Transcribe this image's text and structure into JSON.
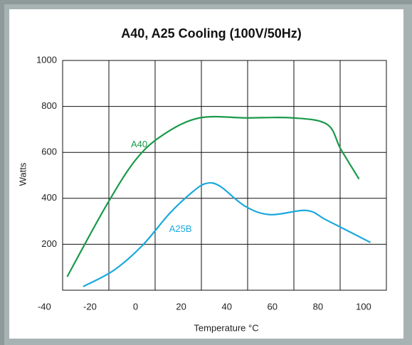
{
  "chart_data": {
    "type": "line",
    "title": "A40, A25 Cooling (100V/50Hz)",
    "x_label": "Temperature °C",
    "y_label": "Watts",
    "xlim": [
      -32,
      110
    ],
    "xticks": [
      -40,
      -20,
      0,
      20,
      40,
      60,
      80,
      100
    ],
    "ylim": [
      0,
      1000
    ],
    "yticks": [
      200,
      400,
      600,
      800,
      1000
    ],
    "grid": true,
    "series": [
      {
        "name": "A40",
        "color": "#1a9a4a",
        "x": [
          -30,
          -13,
          0,
          12,
          28,
          49,
          69,
          84,
          90,
          98
        ],
        "values": [
          59,
          366,
          567,
          676,
          750,
          750,
          750,
          722,
          614,
          484
        ]
      },
      {
        "name": "A25B",
        "color": "#1aa9dc",
        "x": [
          -23,
          -9.5,
          3,
          15,
          25,
          31,
          37,
          48,
          59,
          75,
          84,
          103
        ],
        "values": [
          16,
          87,
          195,
          335,
          428,
          465,
          453,
          366,
          329,
          347,
          304,
          208
        ]
      }
    ]
  }
}
